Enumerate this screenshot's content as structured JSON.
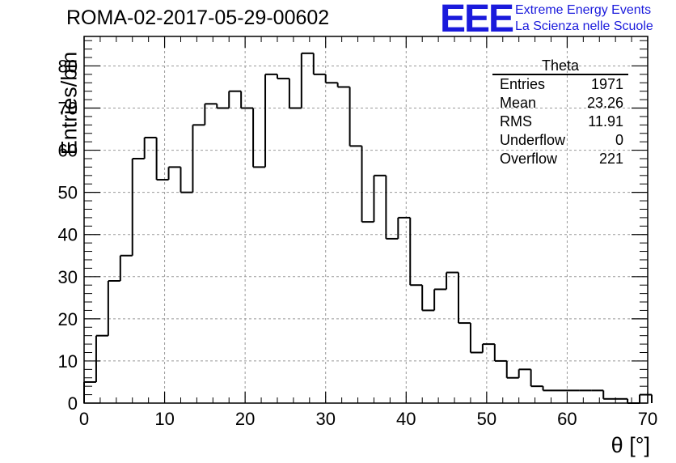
{
  "title": "ROMA-02-2017-05-29-00602",
  "logo": {
    "mark": "EEE",
    "line1": "Extreme Energy Events",
    "line2": "La Scienza nelle Scuole"
  },
  "stats_box": {
    "title": "Theta",
    "rows": [
      {
        "label": "Entries",
        "value": "1971"
      },
      {
        "label": "Mean",
        "value": "23.26"
      },
      {
        "label": "RMS",
        "value": "11.91"
      },
      {
        "label": "Underflow",
        "value": "0"
      },
      {
        "label": "Overflow",
        "value": "221"
      }
    ]
  },
  "chart_data": {
    "type": "bar",
    "style": "step-histogram",
    "xlabel": "θ [°]",
    "ylabel": "Entries/bin",
    "xlim": [
      0,
      70
    ],
    "ylim": [
      0,
      87
    ],
    "xticks": [
      0,
      10,
      20,
      30,
      40,
      50,
      60,
      70
    ],
    "yticks": [
      0,
      10,
      20,
      30,
      40,
      50,
      60,
      70,
      80
    ],
    "grid": true,
    "bin_width": 1.5,
    "bin_edges_start": 0,
    "values": [
      5,
      16,
      29,
      35,
      58,
      63,
      53,
      56,
      50,
      66,
      71,
      70,
      74,
      70,
      56,
      78,
      77,
      70,
      83,
      78,
      76,
      75,
      61,
      43,
      54,
      39,
      44,
      28,
      22,
      27,
      31,
      19,
      12,
      14,
      10,
      6,
      8,
      4,
      3,
      3,
      3,
      3,
      3,
      1,
      1,
      0,
      2
    ]
  }
}
